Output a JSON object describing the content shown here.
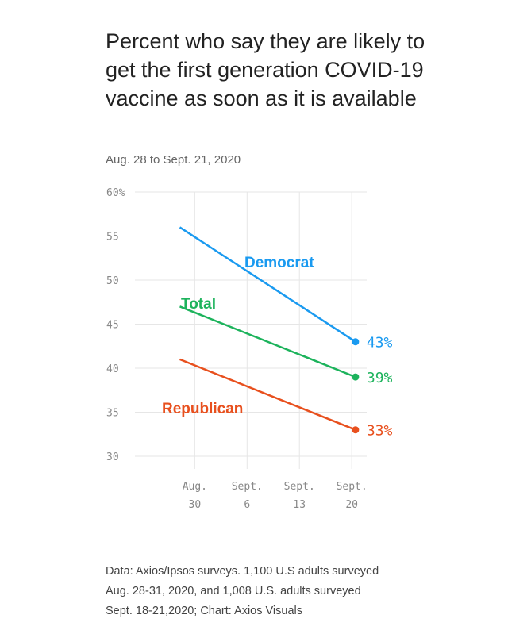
{
  "header": {
    "title": "Percent who say they are likely to get the first generation COVID-19 vaccine as soon as it is available",
    "subtitle": "Aug. 28 to Sept. 21, 2020"
  },
  "footer": {
    "lines": [
      "Data: Axios/Ipsos surveys. 1,100 U.S adults surveyed",
      "Aug. 28-31, 2020, and 1,008 U.S. adults surveyed",
      "Sept. 18-21,2020; Chart: Axios Visuals"
    ]
  },
  "chart_data": {
    "type": "line",
    "x_ticks": [
      {
        "line1": "Aug.",
        "line2": "30"
      },
      {
        "line1": "Sept.",
        "line2": "6"
      },
      {
        "line1": "Sept.",
        "line2": "13"
      },
      {
        "line1": "Sept.",
        "line2": "20"
      }
    ],
    "y_ticks": [
      "60%",
      "55",
      "50",
      "45",
      "40",
      "35",
      "30"
    ],
    "ylim": [
      30,
      60
    ],
    "xlim_days": [
      22,
      53
    ],
    "x_tick_days": [
      30,
      37,
      44,
      51
    ],
    "grid": true,
    "series": [
      {
        "name": "Democrat",
        "color": "#1a9af0",
        "x_days": [
          28,
          51.5
        ],
        "values": [
          56,
          43
        ],
        "end_label": "43%"
      },
      {
        "name": "Total",
        "color": "#1db35c",
        "x_days": [
          28,
          51.5
        ],
        "values": [
          47,
          39
        ],
        "end_label": "39%"
      },
      {
        "name": "Republican",
        "color": "#e8501e",
        "x_days": [
          28,
          51.5
        ],
        "values": [
          41,
          33
        ],
        "end_label": "33%"
      }
    ]
  }
}
